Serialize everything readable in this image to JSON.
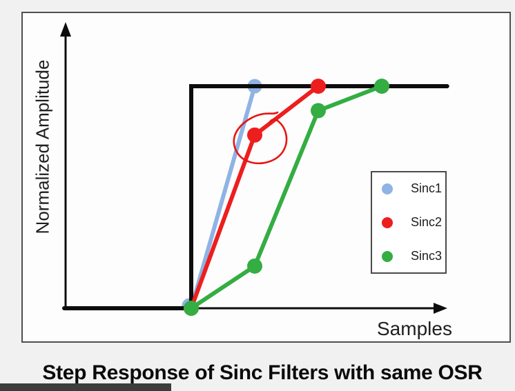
{
  "chart_data": {
    "type": "line",
    "title": "Step Response of Sinc Filters with same OSR",
    "xlabel": "Samples",
    "ylabel": "Normalized Amplitude",
    "ylim": [
      0,
      1
    ],
    "axis_ticks": "none (conceptual sketch, unlabeled arrow axes)",
    "x_unit": "samples after input step (step occurs at x = 0)",
    "input_step": {
      "name": "ideal step input",
      "color": "#0d0d0d",
      "points": [
        [
          -2,
          0
        ],
        [
          0,
          0
        ],
        [
          0,
          1
        ],
        [
          4.03,
          1
        ]
      ]
    },
    "series": [
      {
        "name": "Sinc1",
        "color": "#8fb3e4",
        "points": [
          [
            0,
            0
          ],
          [
            1,
            1
          ]
        ]
      },
      {
        "name": "Sinc2",
        "color": "#ed1e1e",
        "points": [
          [
            0,
            0
          ],
          [
            1,
            0.78
          ],
          [
            2,
            1
          ]
        ]
      },
      {
        "name": "Sinc3",
        "color": "#34ad42",
        "points": [
          [
            0,
            0
          ],
          [
            1,
            0.19
          ],
          [
            2,
            0.89
          ],
          [
            3,
            1
          ]
        ]
      }
    ],
    "legend": {
      "position": "center-right",
      "entries": [
        "Sinc1",
        "Sinc2",
        "Sinc3"
      ]
    },
    "annotation": {
      "type": "hand_drawn_circle",
      "color": "#e81414",
      "target_series": "Sinc2",
      "target_point": {
        "x": 1,
        "y": 0.78
      }
    }
  },
  "decor": {
    "bottom_bar_color": "#3d3d3d"
  }
}
